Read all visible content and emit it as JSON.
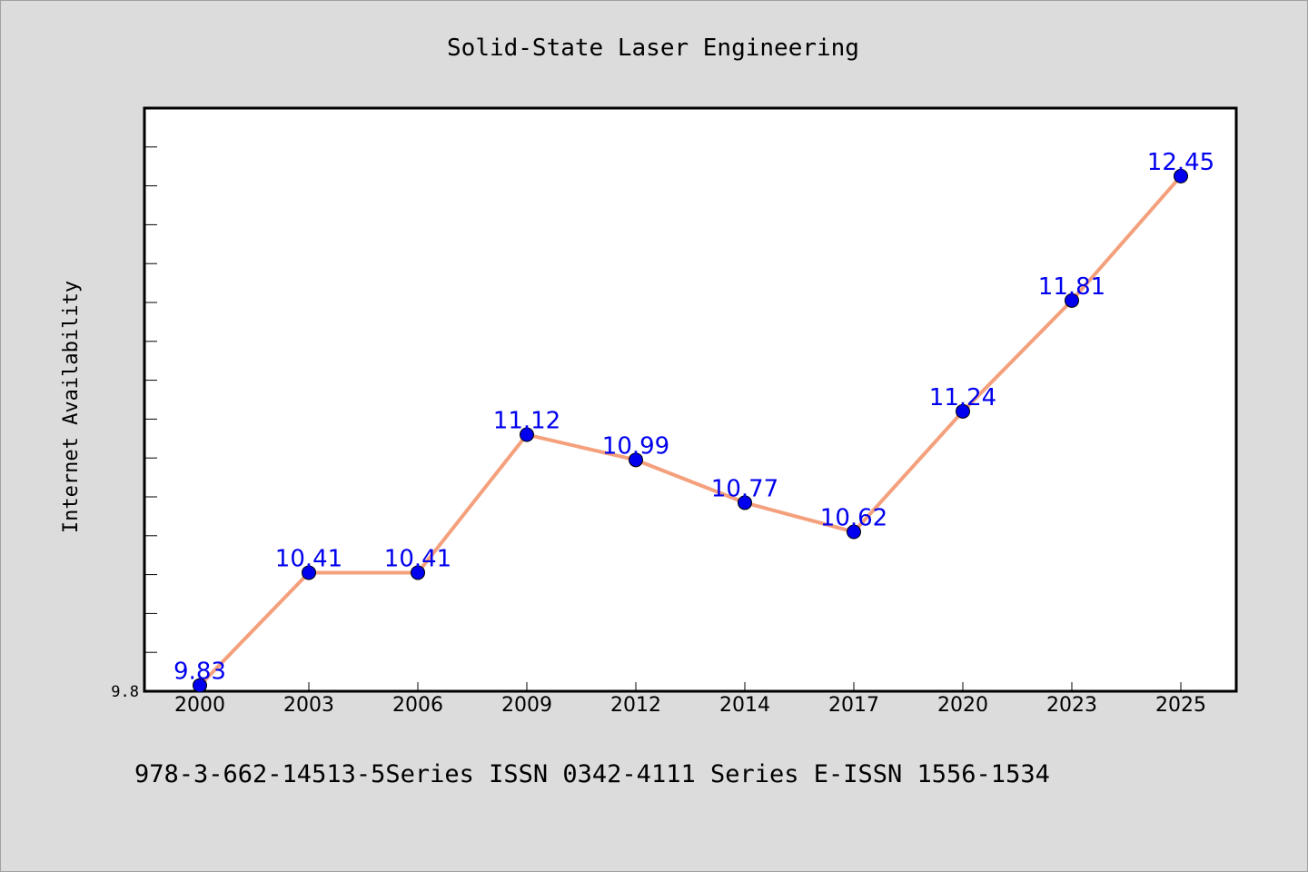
{
  "chart_data": {
    "type": "line",
    "title": "Solid-State Laser Engineering",
    "ylabel": "Internet Availability",
    "xlabel": "",
    "categories": [
      "2000",
      "2003",
      "2006",
      "2009",
      "2012",
      "2014",
      "2017",
      "2020",
      "2023",
      "2025"
    ],
    "values": [
      9.83,
      10.41,
      10.41,
      11.12,
      10.99,
      10.77,
      10.62,
      11.24,
      11.81,
      12.45
    ],
    "data_labels": [
      "9.83",
      "10.41",
      "10.41",
      "11.12",
      "10.99",
      "10.77",
      "10.62",
      "11.24",
      "11.81",
      "12.45"
    ],
    "ytick_labels": [
      "9.8"
    ],
    "ylim": [
      9.8,
      12.8
    ],
    "grid": false,
    "legend": "none",
    "line_color": "#f4a07c",
    "marker_color": "#0000ee",
    "label_color": "#0000ee"
  },
  "footer": {
    "text": "978-3-662-14513-5Series ISSN 0342-4111 Series E-ISSN 1556-1534"
  }
}
